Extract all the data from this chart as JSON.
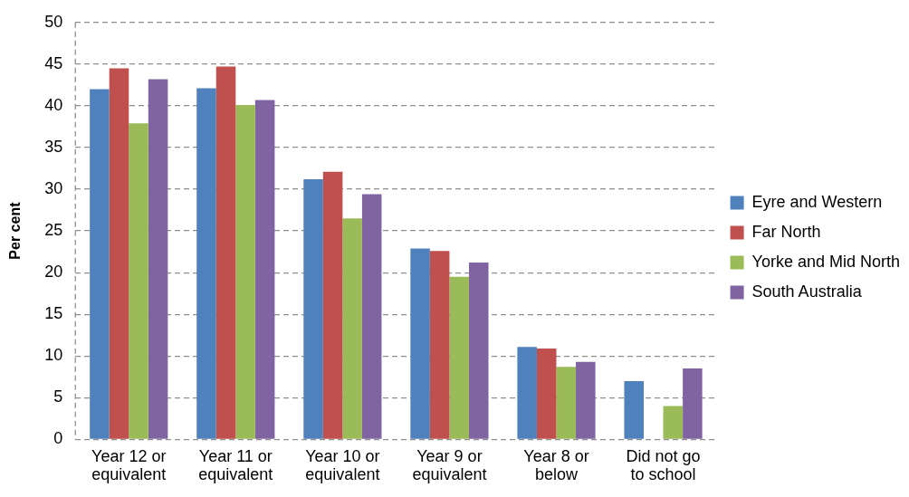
{
  "chart_data": {
    "type": "bar",
    "ylabel": "Per cent",
    "categories": [
      "Year 12 or equivalent",
      "Year 11 or equivalent",
      "Year 10 or equivalent",
      "Year 9 or equivalent",
      "Year 8 or below",
      "Did not go to school"
    ],
    "series": [
      {
        "name": "Eyre and Western",
        "color": "#4f81bd",
        "values": [
          42.0,
          42.1,
          31.2,
          22.9,
          11.1,
          7.0
        ]
      },
      {
        "name": "Far North",
        "color": "#c0504d",
        "values": [
          44.5,
          44.7,
          32.1,
          22.6,
          10.9,
          null
        ]
      },
      {
        "name": "Yorke and Mid North",
        "color": "#9bbb59",
        "values": [
          37.9,
          40.1,
          26.5,
          19.5,
          8.7,
          4.0
        ]
      },
      {
        "name": "South Australia",
        "color": "#8064a2",
        "values": [
          43.2,
          40.7,
          29.4,
          21.2,
          9.3,
          8.5
        ]
      }
    ],
    "ylim": [
      0,
      50
    ],
    "yticks": [
      0,
      5,
      10,
      15,
      20,
      25,
      30,
      35,
      40,
      45,
      50
    ],
    "grid": "y",
    "legend": "right"
  }
}
